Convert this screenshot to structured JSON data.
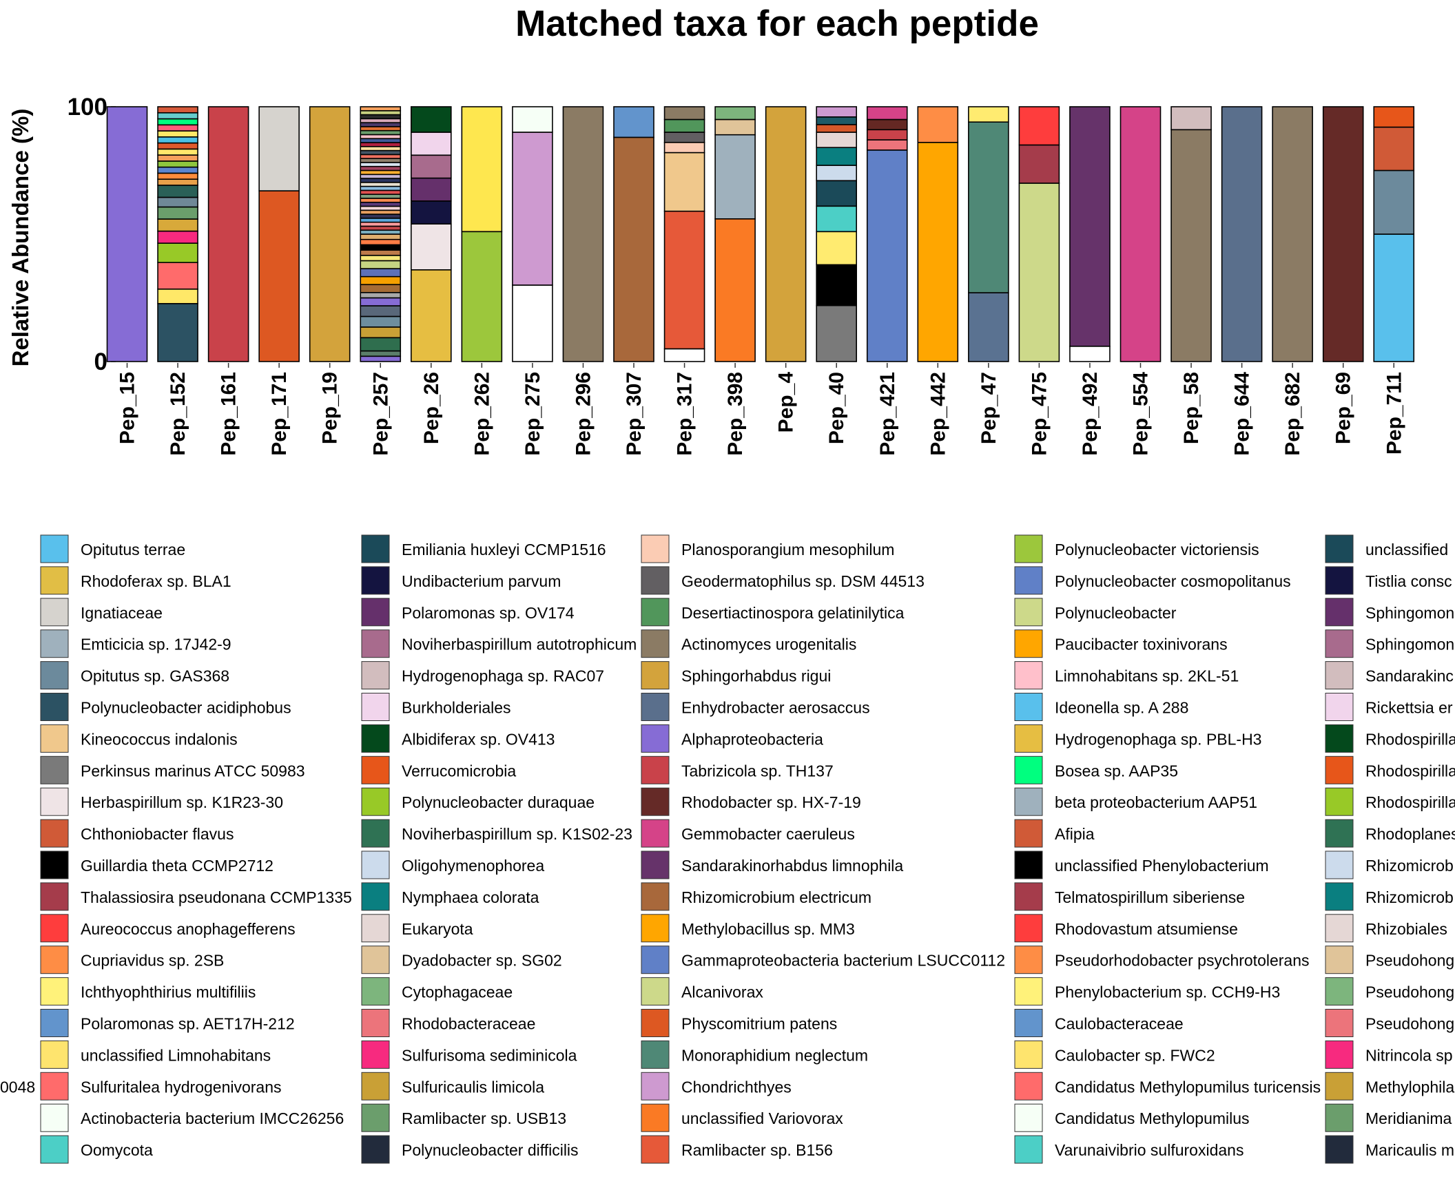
{
  "chart_data": {
    "type": "bar",
    "stacked": true,
    "title": "Matched taxa for each peptide",
    "ylabel": "Relative Abundance (%)",
    "xlabel": "",
    "ylim": [
      0,
      100
    ],
    "yticks": [
      "0",
      "100"
    ],
    "grid": false,
    "legend_position": "bottom",
    "categories": [
      "Pep_15",
      "Pep_152",
      "Pep_161",
      "Pep_171",
      "Pep_19",
      "Pep_257",
      "Pep_26",
      "Pep_262",
      "Pep_275",
      "Pep_296",
      "Pep_307",
      "Pep_317",
      "Pep_398",
      "Pep_4",
      "Pep_40",
      "Pep_421",
      "Pep_442",
      "Pep_47",
      "Pep_475",
      "Pep_492",
      "Pep_554",
      "Pep_58",
      "Pep_644",
      "Pep_682",
      "Pep_69",
      "Pep_711"
    ],
    "stacks": [
      [
        [
          "#866CD5",
          100
        ]
      ],
      [
        [
          "#2C5263",
          24
        ],
        [
          "#FFE868",
          6
        ],
        [
          "#FF6B6B",
          11
        ],
        [
          "#98C927",
          8
        ],
        [
          "#F72A7F",
          5
        ],
        [
          "#D8A93A",
          5
        ],
        [
          "#6B9E6C",
          5
        ],
        [
          "#6F8897",
          4
        ],
        [
          "#2A6057",
          5
        ],
        [
          "#E8A04A",
          2.5
        ],
        [
          "#FF8C3C",
          2.5
        ],
        [
          "#5B85D0",
          2.5
        ],
        [
          "#8EC63F",
          2.5
        ],
        [
          "#F5A05C",
          2.5
        ],
        [
          "#FFE76B",
          2.5
        ],
        [
          "#E05A2D",
          2.5
        ],
        [
          "#4CC0E5",
          2.5
        ],
        [
          "#FFE868",
          2.5
        ],
        [
          "#FF5C7A",
          2.5
        ],
        [
          "#00FF7F",
          2.5
        ],
        [
          "#66CCCC",
          2.5
        ],
        [
          "#D65A3A",
          2.5
        ]
      ],
      [
        [
          "#C9424A",
          100
        ]
      ],
      [
        [
          "#DD5822",
          67
        ],
        [
          "#D6D3CE",
          33
        ]
      ],
      [
        [
          "#D3A33C",
          100
        ]
      ],
      [
        [
          "#866CD5",
          2
        ],
        [
          "#5B7E6A",
          2
        ],
        [
          "#2F6E4E",
          5
        ],
        [
          "#C9A036",
          4
        ],
        [
          "#6E8E9E",
          4
        ],
        [
          "#59687A",
          4
        ],
        [
          "#866CD5",
          3
        ],
        [
          "#A8A8A8",
          2
        ],
        [
          "#A56C36",
          3
        ],
        [
          "#F5A000",
          3
        ],
        [
          "#5E71B8",
          3
        ],
        [
          "#C5D482",
          3
        ],
        [
          "#F5E77B",
          2
        ],
        [
          "#BC7A4A",
          2
        ],
        [
          "#000000",
          2
        ],
        [
          "#FF7C44",
          2
        ],
        [
          "#E0B070",
          2
        ],
        [
          "#7BB0C0",
          1.5
        ],
        [
          "#C5474A",
          1.5
        ],
        [
          "#FF9E9E",
          1.5
        ],
        [
          "#5BA8DB",
          1.5
        ],
        [
          "#333355",
          1.5
        ],
        [
          "#E8A060",
          1.5
        ],
        [
          "#F4D8D8",
          1.5
        ],
        [
          "#5B3A7A",
          1.5
        ],
        [
          "#FF8A50",
          1.5
        ],
        [
          "#7E9F7F",
          1.5
        ],
        [
          "#E05050",
          1.5
        ],
        [
          "#8CBCE0",
          1.5
        ],
        [
          "#E8E0D0",
          1.5
        ],
        [
          "#2A3560",
          1.5
        ],
        [
          "#C8B7D6",
          1.5
        ],
        [
          "#FFB030",
          1.5
        ],
        [
          "#A3445F",
          1.5
        ],
        [
          "#D7E3F0",
          1.5
        ],
        [
          "#8E7F6B",
          1.5
        ],
        [
          "#F07060",
          1.5
        ],
        [
          "#445566",
          1.5
        ],
        [
          "#FFE0A0",
          1.5
        ],
        [
          "#B02040",
          1.5
        ],
        [
          "#3E5A9A",
          1.5
        ],
        [
          "#F8C0C8",
          1.5
        ],
        [
          "#6B9E6C",
          1.5
        ],
        [
          "#E27030",
          1.5
        ],
        [
          "#4A3A6A",
          1.5
        ],
        [
          "#D9A9B9",
          1.5
        ],
        [
          "#2B2B2B",
          1.5
        ],
        [
          "#C8D080",
          1.5
        ],
        [
          "#F5A05C",
          1.5
        ]
      ],
      [
        [
          "#E6BE42",
          36
        ],
        [
          "#EFE4E6",
          18
        ],
        [
          "#141440",
          9
        ],
        [
          "#65306B",
          9
        ],
        [
          "#A86B8D",
          9
        ],
        [
          "#F1D5EC",
          9
        ],
        [
          "#04491C",
          10
        ]
      ],
      [
        [
          "#9CC73C",
          51
        ],
        [
          "#FEE74F",
          49
        ]
      ],
      [
        [
          "#FFFFFF",
          30
        ],
        [
          "#CE9AD0",
          60
        ],
        [
          "#F6FFF6",
          10
        ]
      ],
      [
        [
          "#8B7B64",
          100
        ]
      ],
      [
        [
          "#A8683B",
          88
        ],
        [
          "#6294CC",
          12
        ]
      ],
      [
        [
          "#FFFFFF",
          5
        ],
        [
          "#E65939",
          54
        ],
        [
          "#F0C88C",
          23
        ],
        [
          "#FBCCB4",
          4
        ],
        [
          "#625F62",
          4
        ],
        [
          "#51965B",
          5
        ],
        [
          "#8B7B64",
          5
        ]
      ],
      [
        [
          "#FA7A24",
          56
        ],
        [
          "#9FB1BD",
          33
        ],
        [
          "#E0C499",
          6
        ],
        [
          "#7DB57D",
          5
        ]
      ],
      [
        [
          "#D3A33C",
          100
        ]
      ],
      [
        [
          "#7A7A7A",
          22
        ],
        [
          "#000000",
          16
        ],
        [
          "#FFEB70",
          13
        ],
        [
          "#4CCFC6",
          10
        ],
        [
          "#1B4A59",
          10
        ],
        [
          "#CCDBEC",
          6
        ],
        [
          "#0A7F80",
          7
        ],
        [
          "#E5D7D5",
          6
        ],
        [
          "#D5582A",
          3
        ],
        [
          "#1E5A67",
          3
        ],
        [
          "#CE9AD0",
          4
        ]
      ],
      [
        [
          "#6080C7",
          83
        ],
        [
          "#EC747B",
          4
        ],
        [
          "#C9424A",
          4
        ],
        [
          "#642823",
          4
        ],
        [
          "#D54388",
          5
        ]
      ],
      [
        [
          "#FFA600",
          86
        ],
        [
          "#FE8D45",
          14
        ]
      ],
      [
        [
          "#5A7291",
          27
        ],
        [
          "#4F8876",
          67
        ],
        [
          "#FFEB70",
          6
        ]
      ],
      [
        [
          "#CDD98A",
          70
        ],
        [
          "#A53C4B",
          15
        ],
        [
          "#FE3D3D",
          15
        ]
      ],
      [
        [
          "#FFFFFF",
          6
        ],
        [
          "#66336A",
          94
        ]
      ],
      [
        [
          "#D54388",
          100
        ]
      ],
      [
        [
          "#8B7B64",
          91
        ],
        [
          "#D2BDBE",
          9
        ]
      ],
      [
        [
          "#5A6F8C",
          100
        ]
      ],
      [
        [
          "#8B7B64",
          100
        ]
      ],
      [
        [
          "#652A27",
          100
        ]
      ],
      [
        [
          "#59C0EC",
          50
        ],
        [
          "#6C8A9C",
          25
        ],
        [
          "#D05A37",
          17
        ],
        [
          "#E7561A",
          8
        ]
      ]
    ],
    "legend": [
      [
        {
          "label": "Opitutus terrae",
          "color": "#59C0EC"
        },
        {
          "label": "Rhodoferax sp. BLA1",
          "color": "#E1BE45"
        },
        {
          "label": "Ignatiaceae",
          "color": "#D6D3CE"
        },
        {
          "label": "Emticicia sp. 17J42-9",
          "color": "#9FB1BD"
        },
        {
          "label": "Opitutus sp. GAS368",
          "color": "#6C8A9C"
        },
        {
          "label": "Polynucleobacter acidiphobus",
          "color": "#2C5263"
        },
        {
          "label": "Kineococcus indalonis",
          "color": "#F0C88C"
        },
        {
          "label": "Perkinsus marinus ATCC 50983",
          "color": "#7A7A7A"
        },
        {
          "label": "Herbaspirillum sp. K1R23-30",
          "color": "#EFE4E6"
        },
        {
          "label": "Chthoniobacter flavus",
          "color": "#D05A37"
        },
        {
          "label": "Guillardia theta CCMP2712",
          "color": "#000000"
        },
        {
          "label": "Thalassiosira pseudonana CCMP1335",
          "color": "#A53C4B"
        },
        {
          "label": "Aureococcus anophagefferens",
          "color": "#FE3D3D"
        },
        {
          "label": "Cupriavidus sp. 2SB",
          "color": "#FE8D45"
        },
        {
          "label": "Ichthyophthirius multifiliis",
          "color": "#FFF27A"
        },
        {
          "label": "Polaromonas sp. AET17H-212",
          "color": "#6294CC"
        },
        {
          "label": "unclassified Limnohabitans",
          "color": "#FEE46E"
        },
        {
          "label": "Sulfuritalea hydrogenivorans",
          "color": "#FF6B6B"
        },
        {
          "label": "Actinobacteria bacterium IMCC26256",
          "color": "#F6FFF6"
        },
        {
          "label": "Oomycota",
          "color": "#4CCFC6"
        }
      ],
      [
        {
          "label": "Emiliania huxleyi CCMP1516",
          "color": "#1B4A59"
        },
        {
          "label": "Undibacterium parvum",
          "color": "#141440"
        },
        {
          "label": "Polaromonas sp. OV174",
          "color": "#65306B"
        },
        {
          "label": "Noviherbaspirillum autotrophicum",
          "color": "#A86B8D"
        },
        {
          "label": "Hydrogenophaga sp. RAC07",
          "color": "#D2BDBE"
        },
        {
          "label": "Burkholderiales",
          "color": "#F1D5EC"
        },
        {
          "label": "Albidiferax sp. OV413",
          "color": "#04491C"
        },
        {
          "label": "Verrucomicrobia",
          "color": "#E7561A"
        },
        {
          "label": "Polynucleobacter duraquae",
          "color": "#98C927"
        },
        {
          "label": "Noviherbaspirillum sp. K1S02-23",
          "color": "#2F7254"
        },
        {
          "label": "Oligohymenophorea",
          "color": "#CCDBEC"
        },
        {
          "label": "Nymphaea colorata",
          "color": "#0A7F80"
        },
        {
          "label": "Eukaryota",
          "color": "#E5D7D5"
        },
        {
          "label": "Dyadobacter sp. SG02",
          "color": "#E0C499"
        },
        {
          "label": "Cytophagaceae",
          "color": "#7DB57D"
        },
        {
          "label": "Rhodobacteraceae",
          "color": "#EC747B"
        },
        {
          "label": "Sulfurisoma sediminicola",
          "color": "#F72A7F"
        },
        {
          "label": "Sulfuricaulis limicola",
          "color": "#C9A036"
        },
        {
          "label": "Ramlibacter sp. USB13",
          "color": "#6B9E6C"
        },
        {
          "label": "Polynucleobacter difficilis",
          "color": "#222B3C"
        }
      ],
      [
        {
          "label": "Planosporangium mesophilum",
          "color": "#FBCCB4"
        },
        {
          "label": "Geodermatophilus sp. DSM 44513",
          "color": "#625F62"
        },
        {
          "label": "Desertiactinospora gelatinilytica",
          "color": "#51965B"
        },
        {
          "label": "Actinomyces urogenitalis",
          "color": "#8B7B64"
        },
        {
          "label": "Sphingorhabdus rigui",
          "color": "#D3A33C"
        },
        {
          "label": "Enhydrobacter aerosaccus",
          "color": "#5A6F8C"
        },
        {
          "label": "Alphaproteobacteria",
          "color": "#866CD5"
        },
        {
          "label": "Tabrizicola sp. TH137",
          "color": "#C9424A"
        },
        {
          "label": "Rhodobacter sp. HX-7-19",
          "color": "#652A27"
        },
        {
          "label": "Gemmobacter caeruleus",
          "color": "#D54388"
        },
        {
          "label": "Sandarakinorhabdus limnophila",
          "color": "#66336A"
        },
        {
          "label": "Rhizomicrobium electricum",
          "color": "#A8683B"
        },
        {
          "label": "Methylobacillus sp. MM3",
          "color": "#FFA600"
        },
        {
          "label": "Gammaproteobacteria bacterium LSUCC0112",
          "color": "#6080C7"
        },
        {
          "label": "Alcanivorax",
          "color": "#CDD98A"
        },
        {
          "label": "Physcomitrium patens",
          "color": "#DD5822"
        },
        {
          "label": "Monoraphidium neglectum",
          "color": "#4F8876"
        },
        {
          "label": "Chondrichthyes",
          "color": "#CE9AD0"
        },
        {
          "label": "unclassified Variovorax",
          "color": "#FA7A24"
        },
        {
          "label": "Ramlibacter sp. B156",
          "color": "#E65939"
        }
      ],
      [
        {
          "label": "Polynucleobacter victoriensis",
          "color": "#9CC73C"
        },
        {
          "label": "Polynucleobacter cosmopolitanus",
          "color": "#6080C7"
        },
        {
          "label": "Polynucleobacter",
          "color": "#CDD98A"
        },
        {
          "label": "Paucibacter toxinivorans",
          "color": "#FFA600"
        },
        {
          "label": "Limnohabitans sp. 2KL-51",
          "color": "#FFC0CB"
        },
        {
          "label": "Ideonella sp. A 288",
          "color": "#59C0EC"
        },
        {
          "label": "Hydrogenophaga sp. PBL-H3",
          "color": "#E6BE42"
        },
        {
          "label": "Bosea sp. AAP35",
          "color": "#00FF7F"
        },
        {
          "label": "beta proteobacterium AAP51",
          "color": "#9FB1BD"
        },
        {
          "label": "Afipia",
          "color": "#D05A37"
        },
        {
          "label": "unclassified Phenylobacterium",
          "color": "#000000"
        },
        {
          "label": "Telmatospirillum siberiense",
          "color": "#A53C4B"
        },
        {
          "label": "Rhodovastum atsumiense",
          "color": "#FE3D3D"
        },
        {
          "label": "Pseudorhodobacter psychrotolerans",
          "color": "#FE8D45"
        },
        {
          "label": "Phenylobacterium sp. CCH9-H3",
          "color": "#FFF27A"
        },
        {
          "label": "Caulobacteraceae",
          "color": "#6294CC"
        },
        {
          "label": "Caulobacter sp. FWC2",
          "color": "#FEE46E"
        },
        {
          "label": "Candidatus Methylopumilus turicensis",
          "color": "#FF6B6B"
        },
        {
          "label": "Candidatus Methylopumilus",
          "color": "#F6FFF6"
        },
        {
          "label": "Varunaivibrio sulfuroxidans",
          "color": "#4CCFC6"
        }
      ],
      [
        {
          "label": "unclassified",
          "color": "#1B4A59"
        },
        {
          "label": "Tistlia consc",
          "color": "#141440"
        },
        {
          "label": "Sphingomon",
          "color": "#65306B"
        },
        {
          "label": "Sphingomon",
          "color": "#A86B8D"
        },
        {
          "label": "Sandarakinc",
          "color": "#D2BDBE"
        },
        {
          "label": "Rickettsia er",
          "color": "#F1D5EC"
        },
        {
          "label": "Rhodospirilla",
          "color": "#04491C"
        },
        {
          "label": "Rhodospirilla",
          "color": "#E7561A"
        },
        {
          "label": "Rhodospirilla",
          "color": "#98C927"
        },
        {
          "label": "Rhodoplanes",
          "color": "#2F7254"
        },
        {
          "label": "Rhizomicrob",
          "color": "#CCDBEC"
        },
        {
          "label": "Rhizomicrob",
          "color": "#0A7F80"
        },
        {
          "label": "Rhizobiales",
          "color": "#E5D7D5"
        },
        {
          "label": "Pseudohong",
          "color": "#E0C499"
        },
        {
          "label": "Pseudohong",
          "color": "#7DB57D"
        },
        {
          "label": "Pseudohong",
          "color": "#EC747B"
        },
        {
          "label": "Nitrincola sp",
          "color": "#F72A7F"
        },
        {
          "label": "Methylophila",
          "color": "#C9A036"
        },
        {
          "label": "Meridianima",
          "color": "#6B9E6C"
        },
        {
          "label": "Maricaulis m",
          "color": "#222B3C"
        }
      ]
    ],
    "left_cut_label": "0048"
  }
}
